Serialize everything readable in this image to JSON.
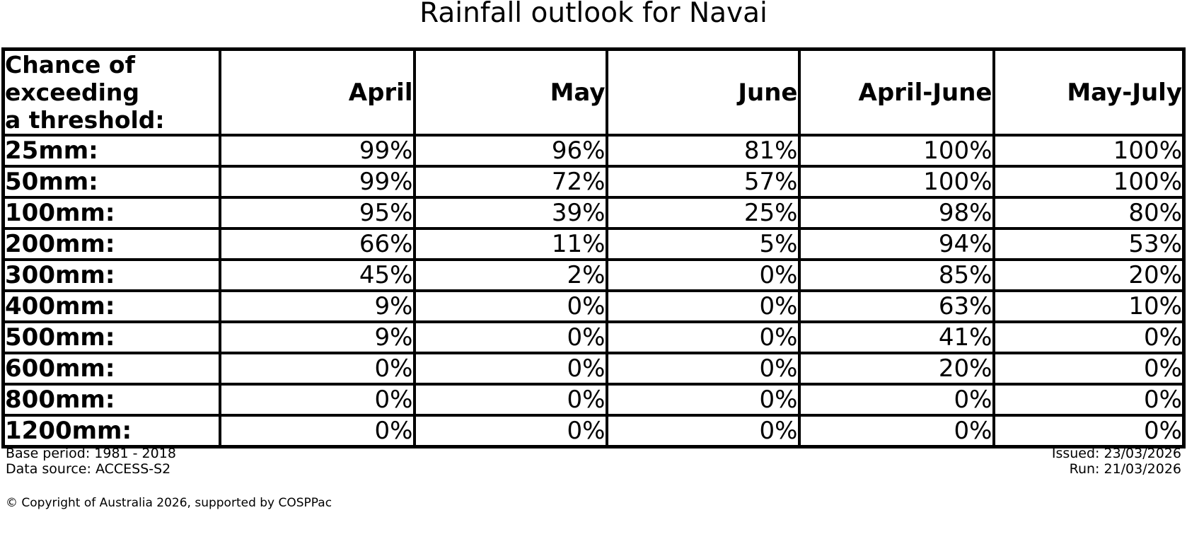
{
  "title": "Rainfall outlook for Navai",
  "table": {
    "header_label_lines": [
      "Chance of",
      "exceeding",
      "a threshold:"
    ],
    "columns": [
      "April",
      "May",
      "June",
      "April-June",
      "May-July"
    ],
    "rows": [
      {
        "threshold": "25mm:",
        "values": [
          "99%",
          "96%",
          "81%",
          "100%",
          "100%"
        ]
      },
      {
        "threshold": "50mm:",
        "values": [
          "99%",
          "72%",
          "57%",
          "100%",
          "100%"
        ]
      },
      {
        "threshold": "100mm:",
        "values": [
          "95%",
          "39%",
          "25%",
          "98%",
          "80%"
        ]
      },
      {
        "threshold": "200mm:",
        "values": [
          "66%",
          "11%",
          "5%",
          "94%",
          "53%"
        ]
      },
      {
        "threshold": "300mm:",
        "values": [
          "45%",
          "2%",
          "0%",
          "85%",
          "20%"
        ]
      },
      {
        "threshold": "400mm:",
        "values": [
          "9%",
          "0%",
          "0%",
          "63%",
          "10%"
        ]
      },
      {
        "threshold": "500mm:",
        "values": [
          "9%",
          "0%",
          "0%",
          "41%",
          "0%"
        ]
      },
      {
        "threshold": "600mm:",
        "values": [
          "0%",
          "0%",
          "0%",
          "20%",
          "0%"
        ]
      },
      {
        "threshold": "800mm:",
        "values": [
          "0%",
          "0%",
          "0%",
          "0%",
          "0%"
        ]
      },
      {
        "threshold": "1200mm:",
        "values": [
          "0%",
          "0%",
          "0%",
          "0%",
          "0%"
        ]
      }
    ]
  },
  "footer": {
    "base_period": "Base period: 1981 - 2018",
    "data_source": "Data source: ACCESS-S2",
    "issued": "Issued: 23/03/2026",
    "run": "Run: 21/03/2026",
    "copyright": "© Copyright of Australia 2026, supported by COSPPac"
  },
  "colors": {
    "text": "#000000",
    "background": "#ffffff",
    "border": "#000000"
  },
  "chart_data": {
    "type": "table",
    "title": "Rainfall outlook for Navai",
    "row_header": "Chance of exceeding a threshold:",
    "columns": [
      "April",
      "May",
      "June",
      "April-June",
      "May-July"
    ],
    "thresholds_mm": [
      25,
      50,
      100,
      200,
      300,
      400,
      500,
      600,
      800,
      1200
    ],
    "values_percent": [
      [
        99,
        96,
        81,
        100,
        100
      ],
      [
        99,
        72,
        57,
        100,
        100
      ],
      [
        95,
        39,
        25,
        98,
        80
      ],
      [
        66,
        11,
        5,
        94,
        53
      ],
      [
        45,
        2,
        0,
        85,
        20
      ],
      [
        9,
        0,
        0,
        63,
        10
      ],
      [
        9,
        0,
        0,
        41,
        0
      ],
      [
        0,
        0,
        0,
        20,
        0
      ],
      [
        0,
        0,
        0,
        0,
        0
      ],
      [
        0,
        0,
        0,
        0,
        0
      ]
    ],
    "notes": [
      "Base period: 1981 - 2018",
      "Data source: ACCESS-S2",
      "Issued: 23/03/2026",
      "Run: 21/03/2026"
    ]
  }
}
